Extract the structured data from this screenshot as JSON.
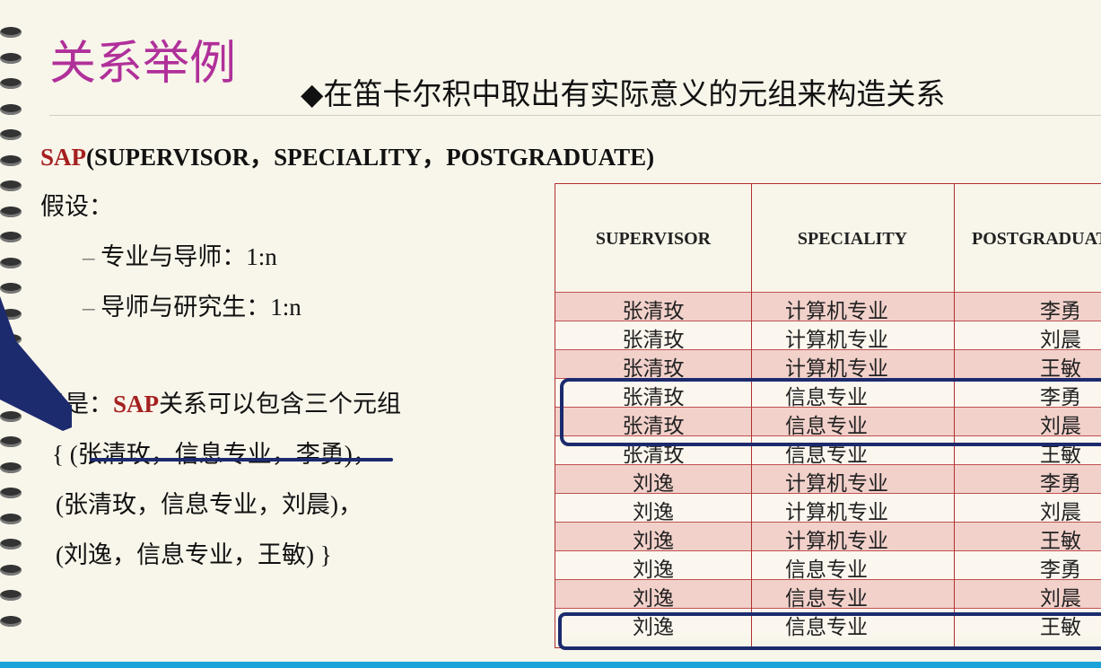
{
  "header": {
    "title": "关系举例",
    "subtitle": "◆在笛卡尔积中取出有实际意义的元组来构造关系"
  },
  "schema": {
    "name": "SAP",
    "rest": "(SUPERVISOR，SPECIALITY，POSTGRADUATE)"
  },
  "assume": {
    "label": "假设：",
    "items": [
      {
        "dash": "–",
        "text": "专业与导师：1:n"
      },
      {
        "dash": "–",
        "text": "导师与研究生：1:n"
      }
    ]
  },
  "conclusion": {
    "prefix": "于是：",
    "name": "SAP",
    "rest": "关系可以包含三个元组"
  },
  "tuples": [
    "{ (张清玫，信息专业，李勇)，",
    "(张清玫，信息专业，刘晨)，",
    "(刘逸，信息专业，王敏) }"
  ],
  "table": {
    "columns": [
      "SUPERVISOR",
      "SPECIALITY",
      "POSTGRADUATE"
    ],
    "rows": [
      [
        "张清玫",
        "计算机专业",
        "李勇"
      ],
      [
        "张清玫",
        "计算机专业",
        "刘晨"
      ],
      [
        "张清玫",
        "计算机专业",
        "王敏"
      ],
      [
        "张清玫",
        "信息专业",
        "李勇"
      ],
      [
        "张清玫",
        "信息专业",
        "刘晨"
      ],
      [
        "张清玫",
        "信息专业",
        "王敏"
      ],
      [
        "刘逸",
        "计算机专业",
        "李勇"
      ],
      [
        "刘逸",
        "计算机专业",
        "刘晨"
      ],
      [
        "刘逸",
        "计算机专业",
        "王敏"
      ],
      [
        "刘逸",
        "信息专业",
        "李勇"
      ],
      [
        "刘逸",
        "信息专业",
        "刘晨"
      ],
      [
        "刘逸",
        "信息专业",
        "王敏"
      ]
    ]
  }
}
